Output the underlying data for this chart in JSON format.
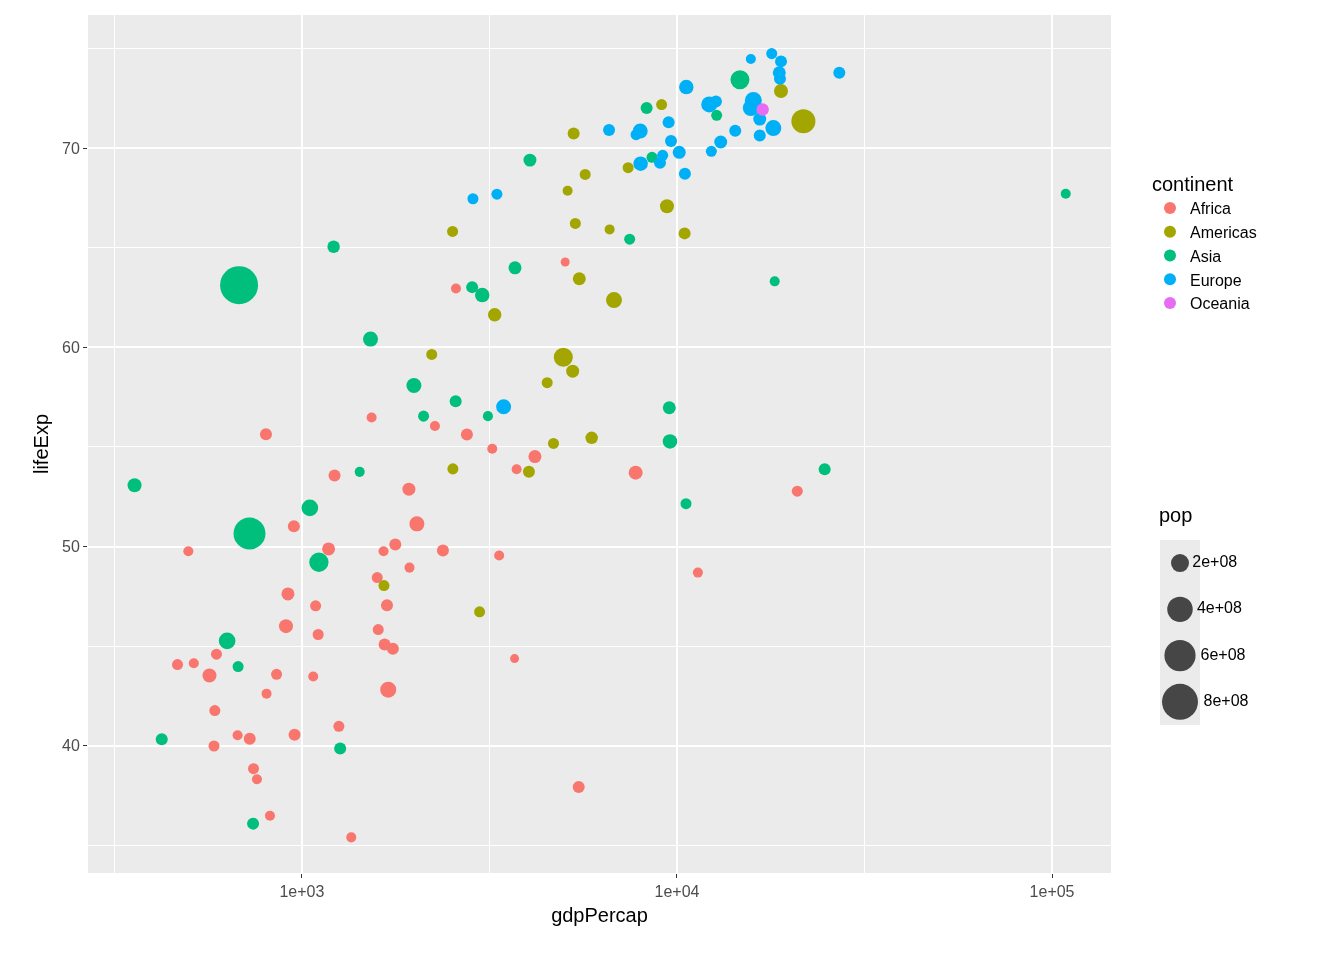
{
  "chart_data": {
    "type": "bubble",
    "xlabel": "gdpPercap",
    "ylabel": "lifeExp",
    "legend_title": "continent",
    "annotations": [
      "pop"
    ],
    "log": "x",
    "grid": true,
    "legend": "right",
    "marker": "circle",
    "xlim": [
      269,
      143600
    ],
    "ylim": [
      33.6,
      76.7
    ],
    "xticks": [
      {
        "value": 1000,
        "label": "1e+03"
      },
      {
        "value": 10000,
        "label": "1e+04"
      },
      {
        "value": 100000,
        "label": "1e+05"
      }
    ],
    "yticks": [
      40,
      50,
      60,
      70
    ],
    "size_legend": [
      {
        "value": 200000000,
        "label": "2e+08"
      },
      {
        "value": 400000000,
        "label": "4e+08"
      },
      {
        "value": 600000000,
        "label": "6e+08"
      },
      {
        "value": 800000000,
        "label": "8e+08"
      }
    ],
    "series": [
      {
        "name": "Africa",
        "color": "#f8766d",
        "x": [
          1534,
          802,
          5035,
          2575,
          2263,
          2754,
          3217,
          4181,
          3737,
          7760,
          2377,
          3357,
          11370,
          3690,
          5470,
          20930,
          1222,
          1929,
          2026,
          952,
          498,
          1178,
          1651,
          1774,
          1936,
          1588,
          918,
          1088,
          1686,
          907,
          1105,
          1598,
          1662,
          1748,
          592,
          466,
          515,
          567,
          856,
          1072,
          1699,
          805,
          586,
          1255,
          674,
          726,
          956,
          583,
          743,
          759,
          822,
          1354
        ],
        "values": [
          56.48,
          55.64,
          64.29,
          62.96,
          56.05,
          55.63,
          54.91,
          54.52,
          53.88,
          53.71,
          49.8,
          49.55,
          48.69,
          44.37,
          37.92,
          52.78,
          53.57,
          52.88,
          51.14,
          51.02,
          49.76,
          49.88,
          49.76,
          50.1,
          48.94,
          48.44,
          47.62,
          47.02,
          47.05,
          46.0,
          45.58,
          45.83,
          45.08,
          44.86,
          44.59,
          44.07,
          44.14,
          43.52,
          43.58,
          43.47,
          42.81,
          42.61,
          41.76,
          40.97,
          40.52,
          40.34,
          40.55,
          39.98,
          38.84,
          38.31,
          36.48,
          35.39
        ],
        "sizes": [
          62000000.0,
          89000000.0,
          50000000.0,
          62000000.0,
          62000000.0,
          89000000.0,
          62000000.0,
          104000000.0,
          62000000.0,
          121000000.0,
          89000000.0,
          62000000.0,
          62000000.0,
          50000000.0,
          89000000.0,
          75000000.0,
          89000000.0,
          104000000.0,
          139000000.0,
          89000000.0,
          62000000.0,
          104000000.0,
          62000000.0,
          89000000.0,
          62000000.0,
          75000000.0,
          104000000.0,
          75000000.0,
          89000000.0,
          121000000.0,
          75000000.0,
          75000000.0,
          89000000.0,
          89000000.0,
          75000000.0,
          75000000.0,
          62000000.0,
          121000000.0,
          75000000.0,
          62000000.0,
          158000000.0,
          62000000.0,
          75000000.0,
          75000000.0,
          62000000.0,
          89000000.0,
          89000000.0,
          75000000.0,
          75000000.0,
          62000000.0,
          62000000.0,
          62000000.0
        ]
      },
      {
        "name": "Americas",
        "color": "#a3a500",
        "x": [
          2219,
          9100,
          21730,
          18940,
          7410,
          5303,
          5692,
          5110,
          9405,
          2522,
          5358,
          6614,
          10480,
          5490,
          3266,
          6793,
          4977,
          5272,
          4508,
          4686,
          5923,
          2527,
          4030,
          2977,
          1655
        ],
        "values": [
          59.65,
          72.2,
          71.36,
          72.88,
          69.03,
          70.75,
          68.69,
          67.87,
          67.09,
          65.83,
          66.23,
          65.93,
          65.73,
          63.45,
          61.64,
          62.38,
          59.51,
          58.81,
          58.23,
          55.18,
          55.46,
          53.9,
          53.76,
          46.72,
          48.04
        ],
        "sizes": [
          75000000.0,
          75000000.0,
          356000000.0,
          121000000.0,
          75000000.0,
          89000000.0,
          75000000.0,
          62000000.0,
          121000000.0,
          75000000.0,
          75000000.0,
          62000000.0,
          89000000.0,
          104000000.0,
          112000000.0,
          158000000.0,
          223000000.0,
          104000000.0,
          75000000.0,
          75000000.0,
          96000000.0,
          75000000.0,
          89000000.0,
          75000000.0,
          75000000.0
        ]
      },
      {
        "name": "Asia",
        "color": "#00bf7d",
        "x": [
          1215,
          680,
          1524,
          1989,
          2111,
          14720,
          8300,
          12760,
          8580,
          4055,
          7480,
          3700,
          18220,
          2844,
          3026,
          2570,
          3133,
          9540,
          9580,
          10570,
          24760,
          108760,
          358,
          1426,
          1050,
          725,
          1110,
          632,
          676,
          423,
          1265,
          741
        ],
        "values": [
          65.06,
          63.13,
          60.42,
          58.09,
          56.55,
          73.45,
          72.03,
          71.66,
          69.55,
          69.41,
          65.44,
          64.0,
          63.32,
          63.03,
          62.63,
          57.3,
          56.55,
          56.97,
          55.28,
          52.15,
          53.88,
          67.72,
          53.08,
          53.75,
          51.94,
          50.65,
          49.21,
          45.26,
          43.97,
          40.32,
          39.85,
          36.08
        ],
        "sizes": [
          96000000.0,
          890000000.0,
          139000000.0,
          139000000.0,
          75000000.0,
          223000000.0,
          89000000.0,
          75000000.0,
          75000000.0,
          104000000.0,
          75000000.0,
          104000000.0,
          62000000.0,
          89000000.0,
          130000000.0,
          89000000.0,
          62000000.0,
          104000000.0,
          130000000.0,
          75000000.0,
          89000000.0,
          62000000.0,
          121000000.0,
          62000000.0,
          170000000.0,
          630000000.0,
          230000000.0,
          170000000.0,
          75000000.0,
          89000000.0,
          89000000.0,
          89000000.0
        ]
      },
      {
        "name": "Europe",
        "color": "#00b0f6",
        "x": [
          15740,
          17890,
          10590,
          12190,
          12700,
          15980,
          15740,
          16620,
          18070,
          14300,
          16620,
          13080,
          12350,
          9500,
          9640,
          10140,
          10500,
          9160,
          9010,
          8000,
          7980,
          7780,
          6590,
          3311,
          2858,
          3450,
          18940,
          18740,
          18820,
          27090
        ],
        "values": [
          74.49,
          74.76,
          73.08,
          72.21,
          72.36,
          72.41,
          72.03,
          71.47,
          71.02,
          70.89,
          70.65,
          70.32,
          69.85,
          71.31,
          70.37,
          69.8,
          68.73,
          69.65,
          69.28,
          69.23,
          70.87,
          70.69,
          70.92,
          67.7,
          67.47,
          57.02,
          74.37,
          73.8,
          73.5,
          73.8
        ],
        "sizes": [
          62000000.0,
          75000000.0,
          130000000.0,
          158000000.0,
          89000000.0,
          178000000.0,
          160000000.0,
          104000000.0,
          158000000.0,
          89000000.0,
          89000000.0,
          104000000.0,
          75000000.0,
          89000000.0,
          89000000.0,
          104000000.0,
          89000000.0,
          75000000.0,
          89000000.0,
          130000000.0,
          139000000.0,
          75000000.0,
          89000000.0,
          75000000.0,
          75000000.0,
          139000000.0,
          89000000.0,
          104000000.0,
          89000000.0,
          89000000.0
        ]
      },
      {
        "name": "Oceania",
        "color": "#e76bf3",
        "x": [
          16920
        ],
        "values": [
          71.95
        ],
        "sizes": [
          96000000.0
        ]
      }
    ]
  }
}
